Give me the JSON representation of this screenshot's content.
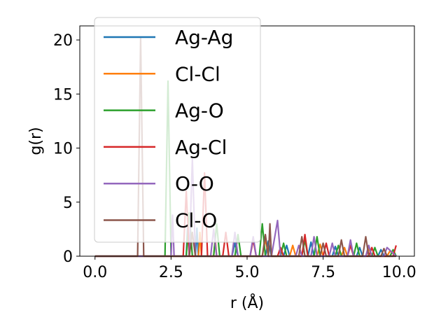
{
  "chart_data": {
    "type": "line",
    "xlabel": "r (Å)",
    "ylabel": "g(r)",
    "xlim": [
      -0.5,
      10.5
    ],
    "ylim": [
      0,
      21.3
    ],
    "xticks": [
      0.0,
      2.5,
      5.0,
      7.5,
      10.0
    ],
    "xtick_labels": [
      "0.0",
      "2.5",
      "5.0",
      "7.5",
      "10.0"
    ],
    "yticks": [
      0,
      5,
      10,
      15,
      20
    ],
    "ytick_labels": [
      "0",
      "5",
      "10",
      "15",
      "20"
    ],
    "grid": false,
    "legend_position": "upper-left",
    "series": [
      {
        "name": "Ag-Ag",
        "color": "#1f77b4",
        "points": [
          [
            0.0,
            0
          ],
          [
            3.0,
            0
          ],
          [
            3.05,
            3.2
          ],
          [
            3.1,
            0
          ],
          [
            3.3,
            0
          ],
          [
            3.35,
            2.6
          ],
          [
            3.4,
            0
          ],
          [
            4.5,
            0
          ],
          [
            4.6,
            1.2
          ],
          [
            4.7,
            0
          ],
          [
            5.6,
            0
          ],
          [
            5.7,
            1.4
          ],
          [
            5.8,
            0
          ],
          [
            6.2,
            0
          ],
          [
            6.3,
            1.0
          ],
          [
            6.4,
            0
          ],
          [
            7.0,
            0
          ],
          [
            7.1,
            1.3
          ],
          [
            7.2,
            0
          ],
          [
            7.8,
            0
          ],
          [
            7.9,
            0.9
          ],
          [
            8.0,
            0
          ],
          [
            8.6,
            0
          ],
          [
            8.7,
            0.8
          ],
          [
            8.8,
            0
          ],
          [
            9.3,
            0
          ],
          [
            9.4,
            0.6
          ],
          [
            9.5,
            0
          ],
          [
            9.9,
            0
          ]
        ]
      },
      {
        "name": "Cl-Cl",
        "color": "#ff7f0e",
        "points": [
          [
            0.0,
            0
          ],
          [
            3.4,
            0
          ],
          [
            3.45,
            2.2
          ],
          [
            3.5,
            0
          ],
          [
            3.9,
            0
          ],
          [
            3.95,
            1.6
          ],
          [
            4.0,
            0
          ],
          [
            5.5,
            0
          ],
          [
            5.6,
            1.6
          ],
          [
            5.7,
            0
          ],
          [
            6.4,
            0
          ],
          [
            6.5,
            1.0
          ],
          [
            6.6,
            0
          ],
          [
            7.3,
            0
          ],
          [
            7.4,
            1.1
          ],
          [
            7.5,
            0
          ],
          [
            8.1,
            0
          ],
          [
            8.2,
            0.8
          ],
          [
            8.3,
            0
          ],
          [
            8.9,
            0
          ],
          [
            9.0,
            0.7
          ],
          [
            9.1,
            0
          ],
          [
            9.6,
            0
          ],
          [
            9.7,
            0.5
          ],
          [
            9.9,
            0
          ]
        ]
      },
      {
        "name": "Ag-O",
        "color": "#2ca02c",
        "points": [
          [
            0.0,
            0
          ],
          [
            2.3,
            0
          ],
          [
            2.4,
            16.2
          ],
          [
            2.5,
            0
          ],
          [
            3.0,
            0
          ],
          [
            3.1,
            4.0
          ],
          [
            3.2,
            0
          ],
          [
            3.9,
            0
          ],
          [
            4.0,
            3.0
          ],
          [
            4.1,
            0
          ],
          [
            4.6,
            0
          ],
          [
            4.7,
            2.0
          ],
          [
            4.8,
            0
          ],
          [
            5.4,
            0
          ],
          [
            5.5,
            3.0
          ],
          [
            5.6,
            0
          ],
          [
            6.1,
            0
          ],
          [
            6.2,
            1.2
          ],
          [
            6.3,
            0
          ],
          [
            6.8,
            0
          ],
          [
            6.9,
            1.5
          ],
          [
            7.0,
            0
          ],
          [
            7.2,
            0
          ],
          [
            7.3,
            1.8
          ],
          [
            7.4,
            0
          ],
          [
            7.9,
            0
          ],
          [
            8.0,
            1.0
          ],
          [
            8.1,
            0
          ],
          [
            8.5,
            0
          ],
          [
            8.6,
            1.2
          ],
          [
            8.7,
            0
          ],
          [
            9.1,
            0
          ],
          [
            9.2,
            0.8
          ],
          [
            9.3,
            0
          ],
          [
            9.7,
            0
          ],
          [
            9.8,
            0.6
          ],
          [
            9.9,
            0
          ]
        ]
      },
      {
        "name": "Ag-Cl",
        "color": "#d62728",
        "points": [
          [
            0.0,
            0
          ],
          [
            2.9,
            0
          ],
          [
            3.0,
            6.0
          ],
          [
            3.1,
            0
          ],
          [
            3.5,
            0
          ],
          [
            3.6,
            7.7
          ],
          [
            3.7,
            0
          ],
          [
            4.2,
            0
          ],
          [
            4.3,
            2.2
          ],
          [
            4.4,
            0
          ],
          [
            5.1,
            0
          ],
          [
            5.2,
            1.5
          ],
          [
            5.3,
            0
          ],
          [
            6.0,
            0
          ],
          [
            6.1,
            0.8
          ],
          [
            6.2,
            0
          ],
          [
            6.8,
            0
          ],
          [
            6.9,
            2.0
          ],
          [
            7.0,
            0
          ],
          [
            7.5,
            0
          ],
          [
            7.6,
            1.2
          ],
          [
            7.7,
            0
          ],
          [
            8.3,
            0
          ],
          [
            8.4,
            1.0
          ],
          [
            8.5,
            0
          ],
          [
            9.0,
            0
          ],
          [
            9.1,
            0.8
          ],
          [
            9.2,
            0
          ],
          [
            9.8,
            0
          ],
          [
            9.9,
            1.0
          ]
        ]
      },
      {
        "name": "O-O",
        "color": "#9467bd",
        "points": [
          [
            0.0,
            0
          ],
          [
            2.5,
            0
          ],
          [
            2.55,
            3.8
          ],
          [
            2.6,
            0
          ],
          [
            3.1,
            0
          ],
          [
            3.2,
            9.0
          ],
          [
            3.3,
            0
          ],
          [
            3.8,
            0
          ],
          [
            3.9,
            2.5
          ],
          [
            4.0,
            0
          ],
          [
            4.5,
            0
          ],
          [
            4.6,
            2.2
          ],
          [
            4.7,
            0
          ],
          [
            5.1,
            0
          ],
          [
            5.2,
            1.8
          ],
          [
            5.3,
            0
          ],
          [
            5.8,
            0
          ],
          [
            6.0,
            3.3
          ],
          [
            6.1,
            0
          ],
          [
            6.6,
            0
          ],
          [
            6.7,
            1.0
          ],
          [
            6.8,
            0
          ],
          [
            7.1,
            0
          ],
          [
            7.2,
            1.8
          ],
          [
            7.3,
            0
          ],
          [
            7.7,
            0
          ],
          [
            7.8,
            1.2
          ],
          [
            7.9,
            0
          ],
          [
            8.3,
            0
          ],
          [
            8.4,
            1.5
          ],
          [
            8.5,
            0
          ],
          [
            8.9,
            0
          ],
          [
            9.0,
            1.0
          ],
          [
            9.1,
            0
          ],
          [
            9.5,
            0
          ],
          [
            9.6,
            0.8
          ],
          [
            9.9,
            0
          ]
        ]
      },
      {
        "name": "Cl-O",
        "color": "#8c564b",
        "points": [
          [
            0.0,
            0
          ],
          [
            1.4,
            0
          ],
          [
            1.5,
            20.2
          ],
          [
            1.6,
            0
          ],
          [
            3.1,
            0
          ],
          [
            3.2,
            2.2
          ],
          [
            3.3,
            0
          ],
          [
            5.5,
            0
          ],
          [
            5.6,
            2.0
          ],
          [
            5.7,
            0
          ],
          [
            5.75,
            3.0
          ],
          [
            5.8,
            0
          ],
          [
            6.7,
            0
          ],
          [
            6.8,
            1.8
          ],
          [
            6.9,
            0
          ],
          [
            7.4,
            0
          ],
          [
            7.5,
            1.2
          ],
          [
            7.6,
            0
          ],
          [
            8.0,
            0
          ],
          [
            8.1,
            1.5
          ],
          [
            8.2,
            0
          ],
          [
            8.8,
            0
          ],
          [
            8.9,
            1.8
          ],
          [
            9.0,
            0
          ],
          [
            9.4,
            0
          ],
          [
            9.5,
            0.7
          ],
          [
            9.6,
            0
          ],
          [
            9.9,
            0
          ]
        ]
      }
    ]
  }
}
